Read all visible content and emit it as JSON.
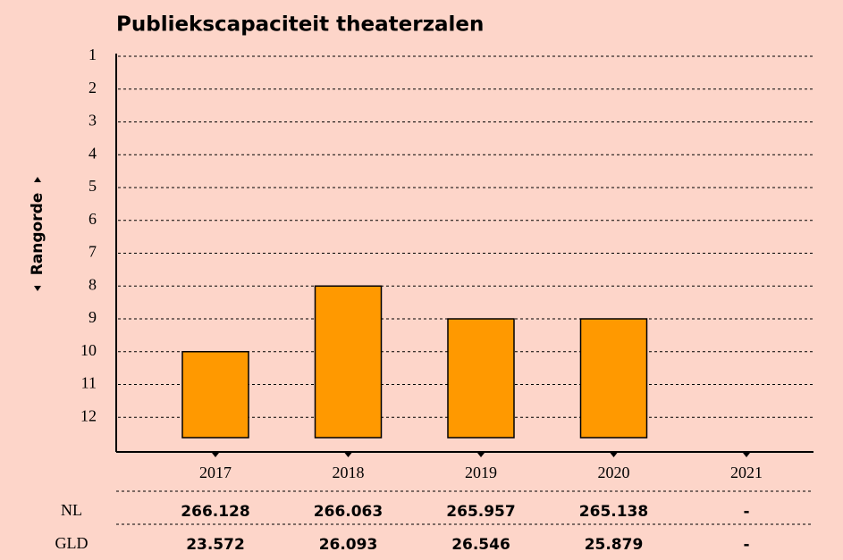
{
  "chart_data": {
    "type": "bar",
    "title": "Publiekscapaciteit theaterzalen",
    "y_label": "Rangorde",
    "categories": [
      "2017",
      "2018",
      "2019",
      "2020",
      "2021"
    ],
    "values": [
      10,
      8,
      9,
      9,
      null
    ],
    "color": "#ff9900",
    "ylim": [
      13,
      1
    ],
    "yticks": [
      1,
      2,
      3,
      4,
      5,
      6,
      7,
      8,
      9,
      10,
      11,
      12
    ],
    "grid": true
  },
  "table": {
    "rows": [
      {
        "label": "NL",
        "cells": [
          "266.128",
          "266.063",
          "265.957",
          "265.138",
          "-"
        ]
      },
      {
        "label": "GLD",
        "cells": [
          "23.572",
          "26.093",
          "26.546",
          "25.879",
          "-"
        ]
      }
    ]
  }
}
